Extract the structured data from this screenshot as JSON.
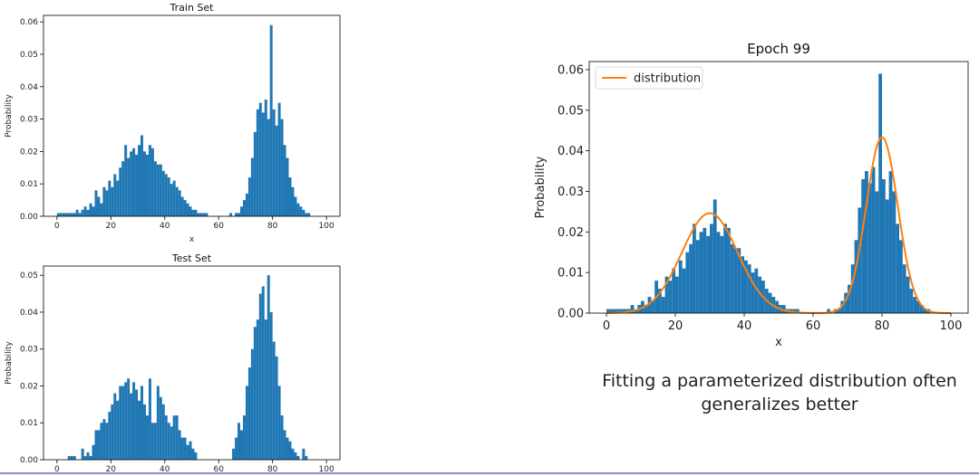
{
  "caption": "Fitting a parameterized distribution often generalizes better",
  "colors": {
    "bar": "#1f77b4",
    "line": "#ff7f0e"
  },
  "chart_data": [
    {
      "id": "train",
      "type": "bar",
      "title": "Train Set",
      "xlabel": "x",
      "ylabel": "Probability",
      "xlim": [
        -5,
        105
      ],
      "ylim": [
        0,
        0.062
      ],
      "xticks": [
        0,
        20,
        40,
        60,
        80,
        100
      ],
      "yticks": [
        0.0,
        0.01,
        0.02,
        0.03,
        0.04,
        0.05,
        0.06
      ],
      "ytick_labels": [
        "0.00",
        "0.01",
        "0.02",
        "0.03",
        "0.04",
        "0.05",
        "0.06"
      ],
      "bin_start": 0,
      "bin_width": 1,
      "values": [
        0.001,
        0.001,
        0.001,
        0.001,
        0.001,
        0.001,
        0.001,
        0.002,
        0.001,
        0.002,
        0.003,
        0.002,
        0.004,
        0.003,
        0.008,
        0.006,
        0.004,
        0.009,
        0.008,
        0.011,
        0.009,
        0.013,
        0.011,
        0.015,
        0.017,
        0.022,
        0.018,
        0.02,
        0.021,
        0.019,
        0.022,
        0.025,
        0.02,
        0.019,
        0.022,
        0.021,
        0.017,
        0.016,
        0.016,
        0.014,
        0.013,
        0.012,
        0.01,
        0.011,
        0.009,
        0.008,
        0.006,
        0.005,
        0.004,
        0.003,
        0.002,
        0.002,
        0.001,
        0.001,
        0.001,
        0.001,
        0,
        0,
        0,
        0,
        0,
        0,
        0,
        0,
        0.001,
        0,
        0.001,
        0.001,
        0.003,
        0.005,
        0.007,
        0.012,
        0.018,
        0.026,
        0.033,
        0.035,
        0.032,
        0.036,
        0.03,
        0.059,
        0.033,
        0.028,
        0.035,
        0.03,
        0.022,
        0.018,
        0.012,
        0.009,
        0.006,
        0.004,
        0.003,
        0.002,
        0.001,
        0.001,
        0,
        0,
        0,
        0,
        0,
        0
      ]
    },
    {
      "id": "test",
      "type": "bar",
      "title": "Test Set",
      "xlabel": "",
      "ylabel": "Probability",
      "xlim": [
        -5,
        105
      ],
      "ylim": [
        0,
        0.0525
      ],
      "xticks": [
        0,
        20,
        40,
        60,
        80,
        100
      ],
      "yticks": [
        0.0,
        0.01,
        0.02,
        0.03,
        0.04,
        0.05
      ],
      "ytick_labels": [
        "0.00",
        "0.01",
        "0.02",
        "0.03",
        "0.04",
        "0.05"
      ],
      "bin_start": 0,
      "bin_width": 1,
      "values": [
        0,
        0,
        0,
        0,
        0.001,
        0.001,
        0.001,
        0,
        0,
        0.003,
        0.001,
        0.002,
        0.001,
        0.004,
        0.008,
        0.008,
        0.01,
        0.011,
        0.01,
        0.013,
        0.015,
        0.018,
        0.016,
        0.02,
        0.02,
        0.021,
        0.022,
        0.018,
        0.021,
        0.019,
        0.016,
        0.02,
        0.015,
        0.012,
        0.022,
        0.01,
        0.01,
        0.02,
        0.017,
        0.015,
        0.012,
        0.01,
        0.009,
        0.012,
        0.012,
        0.008,
        0.006,
        0.006,
        0.004,
        0.005,
        0.003,
        0.002,
        0,
        0,
        0,
        0,
        0,
        0,
        0,
        0,
        0,
        0,
        0,
        0,
        0,
        0.003,
        0.006,
        0.01,
        0.008,
        0.012,
        0.02,
        0.025,
        0.03,
        0.036,
        0.038,
        0.045,
        0.047,
        0.038,
        0.05,
        0.04,
        0.032,
        0.028,
        0.02,
        0.012,
        0.008,
        0.006,
        0.005,
        0.003,
        0.002,
        0.001,
        0,
        0.003,
        0.001,
        0,
        0,
        0,
        0,
        0,
        0,
        0
      ]
    },
    {
      "id": "epoch",
      "type": "bar",
      "title": "Epoch 99",
      "xlabel": "x",
      "ylabel": "Probability",
      "legend": {
        "position": "top-left",
        "entries": [
          "distribution"
        ]
      },
      "xlim": [
        -5,
        105
      ],
      "ylim": [
        0,
        0.062
      ],
      "xticks": [
        0,
        20,
        40,
        60,
        80,
        100
      ],
      "yticks": [
        0.0,
        0.01,
        0.02,
        0.03,
        0.04,
        0.05,
        0.06
      ],
      "ytick_labels": [
        "0.00",
        "0.01",
        "0.02",
        "0.03",
        "0.04",
        "0.05",
        "0.06"
      ],
      "bin_start": 0,
      "bin_width": 1,
      "values": [
        0.001,
        0.001,
        0.001,
        0.001,
        0.001,
        0.001,
        0.001,
        0.002,
        0.001,
        0.002,
        0.003,
        0.002,
        0.004,
        0.003,
        0.008,
        0.006,
        0.004,
        0.009,
        0.008,
        0.011,
        0.009,
        0.013,
        0.011,
        0.015,
        0.017,
        0.022,
        0.018,
        0.02,
        0.021,
        0.019,
        0.022,
        0.028,
        0.02,
        0.019,
        0.022,
        0.021,
        0.017,
        0.016,
        0.016,
        0.014,
        0.013,
        0.012,
        0.01,
        0.011,
        0.009,
        0.008,
        0.006,
        0.005,
        0.004,
        0.003,
        0.002,
        0.002,
        0.001,
        0.001,
        0.001,
        0.001,
        0,
        0,
        0,
        0,
        0,
        0,
        0,
        0,
        0.001,
        0,
        0.001,
        0.001,
        0.003,
        0.005,
        0.007,
        0.012,
        0.018,
        0.026,
        0.033,
        0.035,
        0.032,
        0.036,
        0.03,
        0.059,
        0.033,
        0.028,
        0.035,
        0.03,
        0.022,
        0.018,
        0.012,
        0.009,
        0.006,
        0.004,
        0.003,
        0.002,
        0.001,
        0.001,
        0,
        0,
        0,
        0,
        0,
        0
      ],
      "distribution": {
        "name": "distribution",
        "components": [
          {
            "weight": 0.5,
            "mean": 30,
            "std": 8.1
          },
          {
            "weight": 0.5,
            "mean": 80,
            "std": 4.6
          }
        ],
        "x_range": [
          0,
          100
        ]
      }
    }
  ]
}
